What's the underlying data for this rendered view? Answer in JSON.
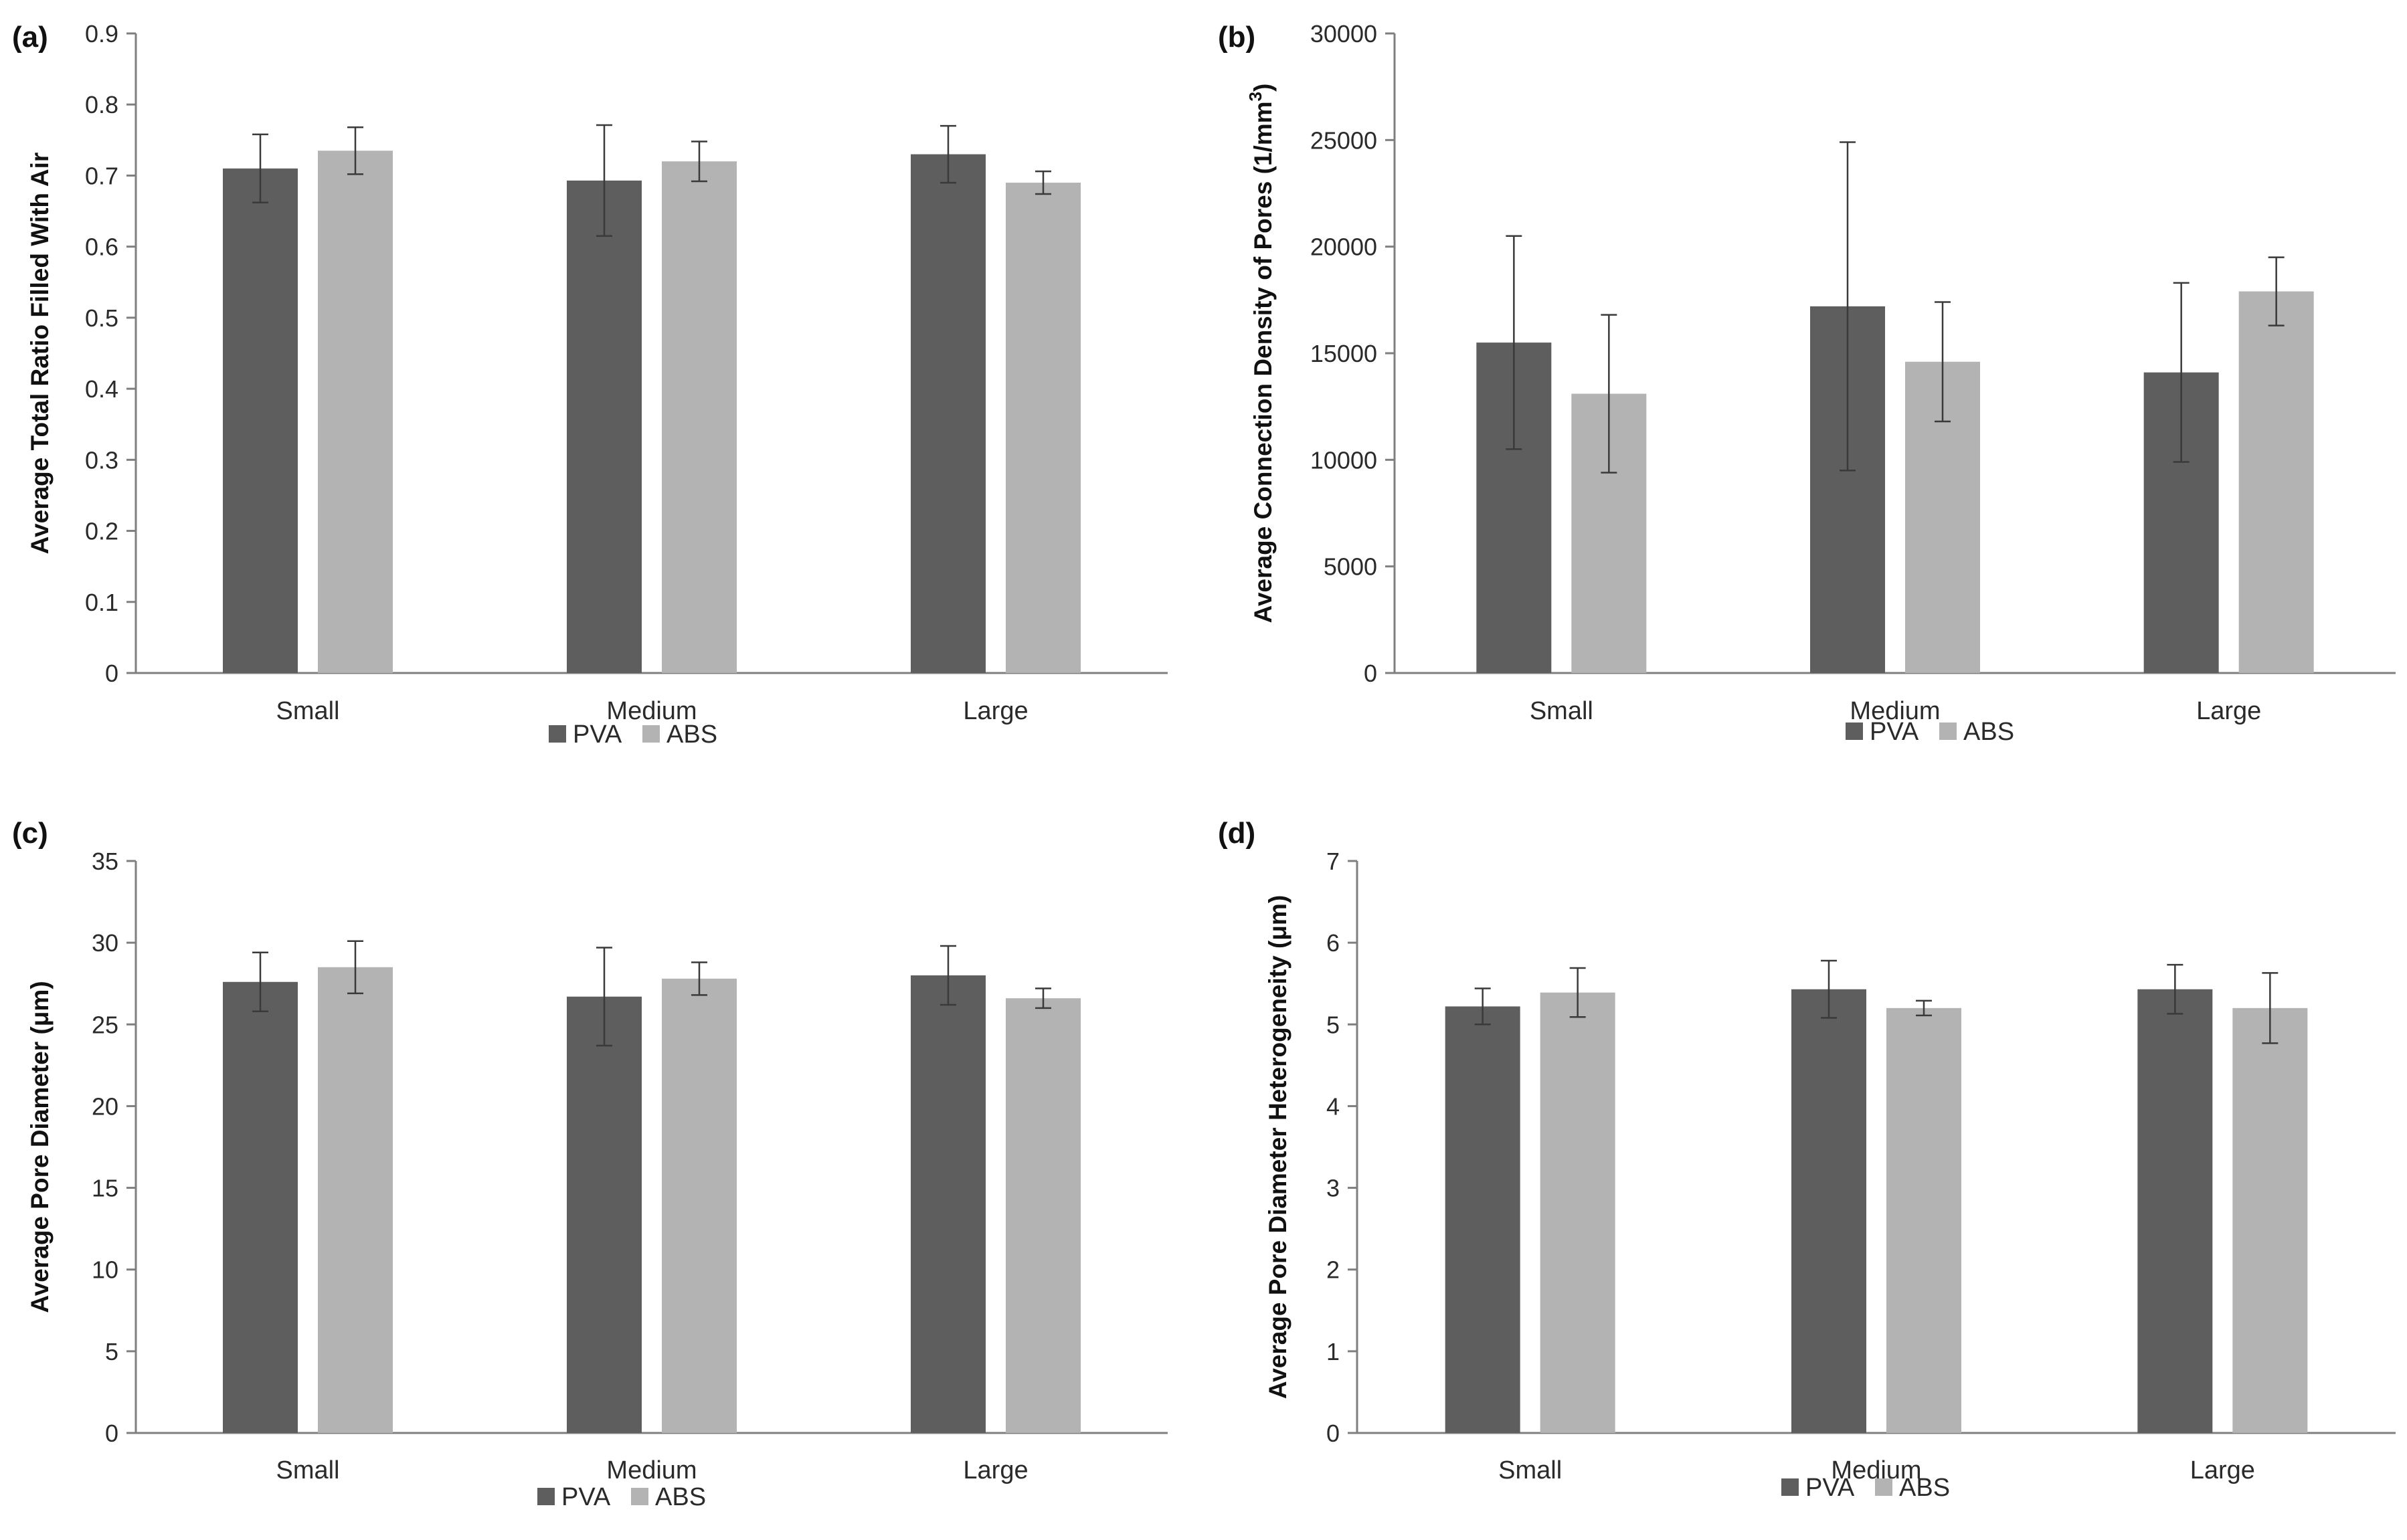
{
  "colors": {
    "PVA": "#5e5e5e",
    "ABS": "#b3b3b3",
    "axis": "#7f7f7f",
    "errorbar": "#3a3a3a"
  },
  "chart_data": [
    {
      "id": "a",
      "panel_label": "(a)",
      "type": "bar",
      "categories": [
        "Small",
        "Medium",
        "Large"
      ],
      "series": [
        {
          "name": "PVA",
          "values": [
            0.71,
            0.693,
            0.73
          ],
          "errors": [
            0.048,
            0.078,
            0.04
          ]
        },
        {
          "name": "ABS",
          "values": [
            0.735,
            0.72,
            0.69
          ],
          "errors": [
            0.033,
            0.028,
            0.016
          ]
        }
      ],
      "ylabel": "Average Total Ratio Filled With Air",
      "ylim": [
        0,
        0.9
      ],
      "yticks": [
        "0",
        "0.1",
        "0.2",
        "0.3",
        "0.4",
        "0.5",
        "0.6",
        "0.7",
        "0.8",
        "0.9"
      ],
      "legend": [
        "PVA",
        "ABS"
      ],
      "legend_position": "bottom"
    },
    {
      "id": "b",
      "panel_label": "(b)",
      "type": "bar",
      "categories": [
        "Small",
        "Medium",
        "Large"
      ],
      "series": [
        {
          "name": "PVA",
          "values": [
            15500,
            17200,
            14100
          ],
          "errors": [
            5000,
            7700,
            4200
          ]
        },
        {
          "name": "ABS",
          "values": [
            13100,
            14600,
            17900
          ],
          "errors": [
            3700,
            2800,
            1600
          ]
        }
      ],
      "ylabel": "Average Connection Density of Pores (1/mm",
      "ylabel_sup": "3",
      "ylabel_end": ")",
      "ylim": [
        0,
        30000
      ],
      "yticks": [
        "0",
        "5000",
        "10000",
        "15000",
        "20000",
        "25000",
        "30000"
      ],
      "legend": [
        "PVA",
        "ABS"
      ],
      "legend_position": "bottom"
    },
    {
      "id": "c",
      "panel_label": "(c)",
      "type": "bar",
      "categories": [
        "Small",
        "Medium",
        "Large"
      ],
      "series": [
        {
          "name": "PVA",
          "values": [
            27.6,
            26.7,
            28.0
          ],
          "errors": [
            1.8,
            3.0,
            1.8
          ]
        },
        {
          "name": "ABS",
          "values": [
            28.5,
            27.8,
            26.6
          ],
          "errors": [
            1.6,
            1.0,
            0.6
          ]
        }
      ],
      "ylabel": "Average Pore Diameter (μm)",
      "ylim": [
        0,
        35
      ],
      "yticks": [
        "0",
        "5",
        "10",
        "15",
        "20",
        "25",
        "30",
        "35"
      ],
      "legend": [
        "PVA",
        "ABS"
      ],
      "legend_position": "bottom"
    },
    {
      "id": "d",
      "panel_label": "(d)",
      "type": "bar",
      "categories": [
        "Small",
        "Medium",
        "Large"
      ],
      "series": [
        {
          "name": "PVA",
          "values": [
            5.22,
            5.43,
            5.43
          ],
          "errors": [
            0.22,
            0.35,
            0.3
          ]
        },
        {
          "name": "ABS",
          "values": [
            5.39,
            5.2,
            5.2
          ],
          "errors": [
            0.3,
            0.09,
            0.43
          ]
        }
      ],
      "ylabel": "Average Pore Diameter Heterogeneity (μm)",
      "ylim": [
        0,
        7
      ],
      "yticks": [
        "0",
        "1",
        "2",
        "3",
        "4",
        "5",
        "6",
        "7"
      ],
      "legend": [
        "PVA",
        "ABS"
      ],
      "legend_position": "bottom"
    }
  ]
}
